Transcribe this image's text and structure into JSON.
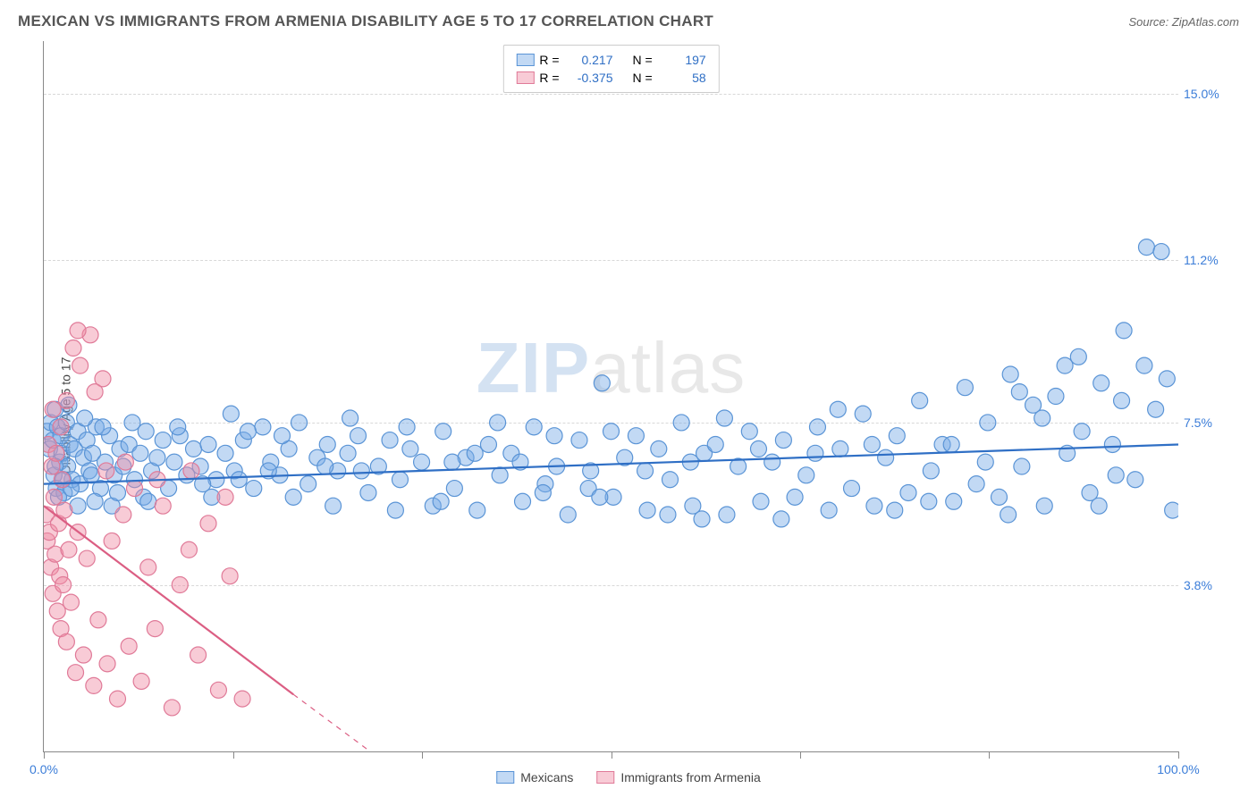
{
  "header": {
    "title": "MEXICAN VS IMMIGRANTS FROM ARMENIA DISABILITY AGE 5 TO 17 CORRELATION CHART",
    "source_prefix": "Source: ",
    "source_name": "ZipAtlas.com"
  },
  "watermark": {
    "zip": "ZIP",
    "rest": "atlas"
  },
  "chart": {
    "type": "scatter",
    "y_axis_label": "Disability Age 5 to 17",
    "background_color": "#ffffff",
    "grid_color": "#d8d8d8",
    "axis_color": "#888888",
    "marker_radius": 9,
    "marker_stroke_width": 1.2,
    "xlim": [
      0,
      100
    ],
    "ylim": [
      0,
      16.2
    ],
    "y_ticks": [
      {
        "value": 15.0,
        "label": "15.0%",
        "color": "#3b7dd8"
      },
      {
        "value": 11.2,
        "label": "11.2%",
        "color": "#3b7dd8"
      },
      {
        "value": 7.5,
        "label": "7.5%",
        "color": "#3b7dd8"
      },
      {
        "value": 3.8,
        "label": "3.8%",
        "color": "#3b7dd8"
      }
    ],
    "x_ticks": [
      {
        "value": 0.0,
        "label": "0.0%",
        "color": "#3b7dd8",
        "show_tick": true,
        "show_label": true
      },
      {
        "value": 16.67,
        "label": "",
        "color": "#3b7dd8",
        "show_tick": true,
        "show_label": false
      },
      {
        "value": 33.33,
        "label": "",
        "color": "#3b7dd8",
        "show_tick": true,
        "show_label": false
      },
      {
        "value": 50.0,
        "label": "",
        "color": "#3b7dd8",
        "show_tick": true,
        "show_label": false
      },
      {
        "value": 66.67,
        "label": "",
        "color": "#3b7dd8",
        "show_tick": true,
        "show_label": false
      },
      {
        "value": 83.33,
        "label": "",
        "color": "#3b7dd8",
        "show_tick": true,
        "show_label": false
      },
      {
        "value": 100.0,
        "label": "100.0%",
        "color": "#3b7dd8",
        "show_tick": true,
        "show_label": true
      }
    ],
    "series": [
      {
        "id": "mexicans",
        "label": "Mexicans",
        "fill_color": "rgba(120,170,230,0.45)",
        "stroke_color": "#5a94d6",
        "trend_color": "#2f6fc5",
        "trend_width": 2.2,
        "trend": {
          "x1": 0,
          "y1": 6.1,
          "x2": 100,
          "y2": 7.0
        },
        "r_label": "R =",
        "r_value": "0.217",
        "n_label": "N =",
        "n_value": "197",
        "stat_color": "#2f6fc5",
        "points": [
          [
            0.3,
            7.3
          ],
          [
            0.5,
            6.9
          ],
          [
            0.6,
            7.5
          ],
          [
            0.8,
            7.1
          ],
          [
            0.9,
            6.3
          ],
          [
            1.0,
            7.8
          ],
          [
            1.1,
            6.0
          ],
          [
            1.2,
            7.4
          ],
          [
            1.4,
            6.6
          ],
          [
            1.5,
            7.2
          ],
          [
            1.6,
            6.8
          ],
          [
            1.8,
            5.9
          ],
          [
            2.0,
            7.5
          ],
          [
            2.1,
            6.5
          ],
          [
            2.3,
            7.0
          ],
          [
            2.5,
            6.2
          ],
          [
            2.7,
            6.9
          ],
          [
            3.0,
            7.3
          ],
          [
            3.2,
            6.1
          ],
          [
            3.5,
            6.7
          ],
          [
            3.8,
            7.1
          ],
          [
            4.0,
            6.4
          ],
          [
            4.3,
            6.8
          ],
          [
            4.6,
            7.4
          ],
          [
            5.0,
            6.0
          ],
          [
            5.4,
            6.6
          ],
          [
            5.8,
            7.2
          ],
          [
            6.2,
            6.3
          ],
          [
            6.7,
            6.9
          ],
          [
            7.0,
            6.5
          ],
          [
            7.5,
            7.0
          ],
          [
            8.0,
            6.2
          ],
          [
            8.5,
            6.8
          ],
          [
            9.0,
            7.3
          ],
          [
            9.5,
            6.4
          ],
          [
            10,
            6.7
          ],
          [
            10.5,
            7.1
          ],
          [
            11,
            6.0
          ],
          [
            11.5,
            6.6
          ],
          [
            12,
            7.2
          ],
          [
            12.6,
            6.3
          ],
          [
            13.2,
            6.9
          ],
          [
            13.8,
            6.5
          ],
          [
            14.5,
            7.0
          ],
          [
            15.2,
            6.2
          ],
          [
            16,
            6.8
          ],
          [
            16.8,
            6.4
          ],
          [
            17.6,
            7.1
          ],
          [
            18.5,
            6.0
          ],
          [
            19.3,
            7.4
          ],
          [
            20,
            6.6
          ],
          [
            20.8,
            6.3
          ],
          [
            21.6,
            6.9
          ],
          [
            22.5,
            7.5
          ],
          [
            23.3,
            6.1
          ],
          [
            24.1,
            6.7
          ],
          [
            25,
            7.0
          ],
          [
            25.9,
            6.4
          ],
          [
            26.8,
            6.8
          ],
          [
            27.7,
            7.2
          ],
          [
            28.6,
            5.9
          ],
          [
            29.5,
            6.5
          ],
          [
            30.5,
            7.1
          ],
          [
            31.4,
            6.2
          ],
          [
            32.3,
            6.9
          ],
          [
            33.3,
            6.6
          ],
          [
            34.3,
            5.6
          ],
          [
            35.2,
            7.3
          ],
          [
            36.2,
            6.0
          ],
          [
            37.2,
            6.7
          ],
          [
            38.2,
            5.5
          ],
          [
            39.2,
            7.0
          ],
          [
            40.2,
            6.3
          ],
          [
            41.2,
            6.8
          ],
          [
            42.2,
            5.7
          ],
          [
            43.2,
            7.4
          ],
          [
            44.2,
            6.1
          ],
          [
            45.2,
            6.5
          ],
          [
            46.2,
            5.4
          ],
          [
            47.2,
            7.1
          ],
          [
            48.2,
            6.4
          ],
          [
            49.2,
            8.4
          ],
          [
            50.2,
            5.8
          ],
          [
            51.2,
            6.7
          ],
          [
            52.2,
            7.2
          ],
          [
            53.2,
            5.5
          ],
          [
            54.2,
            6.9
          ],
          [
            55.2,
            6.2
          ],
          [
            56.2,
            7.5
          ],
          [
            57.2,
            5.6
          ],
          [
            58.2,
            6.8
          ],
          [
            59.2,
            7.0
          ],
          [
            60.2,
            5.4
          ],
          [
            61.2,
            6.5
          ],
          [
            62.2,
            7.3
          ],
          [
            63.2,
            5.7
          ],
          [
            64.2,
            6.6
          ],
          [
            65.2,
            7.1
          ],
          [
            66.2,
            5.8
          ],
          [
            67.2,
            6.3
          ],
          [
            68.2,
            7.4
          ],
          [
            69.2,
            5.5
          ],
          [
            70.2,
            6.9
          ],
          [
            71.2,
            6.0
          ],
          [
            72.2,
            7.7
          ],
          [
            73.2,
            5.6
          ],
          [
            74.2,
            6.7
          ],
          [
            75.2,
            7.2
          ],
          [
            76.2,
            5.9
          ],
          [
            77.2,
            8.0
          ],
          [
            78.2,
            6.4
          ],
          [
            79.2,
            7.0
          ],
          [
            80.2,
            5.7
          ],
          [
            81.2,
            8.3
          ],
          [
            82.2,
            6.1
          ],
          [
            83.2,
            7.5
          ],
          [
            84.2,
            5.8
          ],
          [
            85.2,
            8.6
          ],
          [
            86.2,
            6.5
          ],
          [
            87.2,
            7.9
          ],
          [
            88.2,
            5.6
          ],
          [
            89.2,
            8.1
          ],
          [
            90.2,
            6.8
          ],
          [
            91.2,
            9.0
          ],
          [
            92.2,
            5.9
          ],
          [
            93.2,
            8.4
          ],
          [
            94.2,
            7.0
          ],
          [
            95.2,
            9.6
          ],
          [
            96.2,
            6.2
          ],
          [
            97.2,
            11.5
          ],
          [
            98.0,
            7.8
          ],
          [
            98.5,
            11.4
          ],
          [
            99.0,
            8.5
          ],
          [
            99.5,
            5.5
          ],
          [
            2.2,
            7.9
          ],
          [
            4.5,
            5.7
          ],
          [
            6.0,
            5.6
          ],
          [
            8.8,
            5.8
          ],
          [
            25.5,
            5.6
          ],
          [
            31.0,
            5.5
          ],
          [
            35.0,
            5.7
          ],
          [
            40.0,
            7.5
          ],
          [
            45.0,
            7.2
          ],
          [
            50.0,
            7.3
          ],
          [
            55.0,
            5.4
          ],
          [
            60.0,
            7.6
          ],
          [
            65.0,
            5.3
          ],
          [
            70.0,
            7.8
          ],
          [
            75.0,
            5.5
          ],
          [
            80.0,
            7.0
          ],
          [
            85.0,
            5.4
          ],
          [
            90.0,
            8.8
          ],
          [
            93.0,
            5.6
          ],
          [
            95.0,
            8.0
          ],
          [
            14.0,
            6.1
          ],
          [
            18.0,
            7.3
          ],
          [
            22.0,
            5.8
          ],
          [
            27.0,
            7.6
          ],
          [
            32.0,
            7.4
          ],
          [
            38.0,
            6.8
          ],
          [
            44.0,
            5.9
          ],
          [
            48.0,
            6.0
          ],
          [
            53.0,
            6.4
          ],
          [
            58.0,
            5.3
          ],
          [
            63.0,
            6.9
          ],
          [
            68.0,
            6.8
          ],
          [
            73.0,
            7.0
          ],
          [
            78.0,
            5.7
          ],
          [
            83.0,
            6.6
          ],
          [
            88.0,
            7.6
          ],
          [
            91.5,
            7.3
          ],
          [
            94.5,
            6.3
          ],
          [
            97.0,
            8.8
          ],
          [
            86.0,
            8.2
          ],
          [
            1.0,
            6.5
          ],
          [
            1.3,
            5.8
          ],
          [
            1.7,
            6.2
          ],
          [
            2.4,
            6.0
          ],
          [
            3.0,
            5.6
          ],
          [
            3.6,
            7.6
          ],
          [
            4.2,
            6.3
          ],
          [
            5.2,
            7.4
          ],
          [
            6.5,
            5.9
          ],
          [
            7.8,
            7.5
          ],
          [
            9.2,
            5.7
          ],
          [
            11.8,
            7.4
          ],
          [
            14.8,
            5.8
          ],
          [
            17.2,
            6.2
          ],
          [
            21.0,
            7.2
          ],
          [
            28.0,
            6.4
          ],
          [
            36.0,
            6.6
          ],
          [
            42.0,
            6.6
          ],
          [
            49.0,
            5.8
          ],
          [
            57.0,
            6.6
          ],
          [
            16.5,
            7.7
          ],
          [
            19.8,
            6.4
          ],
          [
            24.8,
            6.5
          ]
        ]
      },
      {
        "id": "armenia",
        "label": "Immigrants from Armenia",
        "fill_color": "rgba(240,140,165,0.45)",
        "stroke_color": "#e07a98",
        "trend_color": "#db5e83",
        "trend_width": 2.2,
        "trend": {
          "x1": 0,
          "y1": 5.6,
          "x2": 22,
          "y2": 1.3
        },
        "trend_ext": {
          "x1": 22,
          "y1": 1.3,
          "x2": 35,
          "y2": -1.2
        },
        "r_label": "R =",
        "r_value": "-0.375",
        "n_label": "N =",
        "n_value": "58",
        "stat_color": "#2f6fc5",
        "points": [
          [
            0.2,
            5.4
          ],
          [
            0.3,
            4.8
          ],
          [
            0.4,
            7.0
          ],
          [
            0.5,
            5.0
          ],
          [
            0.6,
            4.2
          ],
          [
            0.7,
            6.5
          ],
          [
            0.8,
            3.6
          ],
          [
            0.9,
            5.8
          ],
          [
            1.0,
            4.5
          ],
          [
            1.1,
            6.8
          ],
          [
            1.2,
            3.2
          ],
          [
            1.3,
            5.2
          ],
          [
            1.4,
            4.0
          ],
          [
            1.5,
            2.8
          ],
          [
            1.6,
            6.2
          ],
          [
            1.7,
            3.8
          ],
          [
            1.8,
            5.5
          ],
          [
            2.0,
            2.5
          ],
          [
            2.2,
            4.6
          ],
          [
            2.4,
            3.4
          ],
          [
            2.6,
            9.2
          ],
          [
            2.8,
            1.8
          ],
          [
            3.0,
            5.0
          ],
          [
            3.2,
            8.8
          ],
          [
            3.5,
            2.2
          ],
          [
            3.8,
            4.4
          ],
          [
            4.1,
            9.5
          ],
          [
            4.4,
            1.5
          ],
          [
            4.8,
            3.0
          ],
          [
            5.2,
            8.5
          ],
          [
            5.6,
            2.0
          ],
          [
            6.0,
            4.8
          ],
          [
            6.5,
            1.2
          ],
          [
            7.0,
            5.4
          ],
          [
            7.5,
            2.4
          ],
          [
            8.0,
            6.0
          ],
          [
            8.6,
            1.6
          ],
          [
            9.2,
            4.2
          ],
          [
            9.8,
            2.8
          ],
          [
            10.5,
            5.6
          ],
          [
            11.3,
            1.0
          ],
          [
            12.0,
            3.8
          ],
          [
            12.8,
            4.6
          ],
          [
            13.6,
            2.2
          ],
          [
            14.5,
            5.2
          ],
          [
            15.4,
            1.4
          ],
          [
            16.4,
            4.0
          ],
          [
            3.0,
            9.6
          ],
          [
            4.5,
            8.2
          ],
          [
            2.0,
            8.0
          ],
          [
            1.5,
            7.4
          ],
          [
            0.8,
            7.8
          ],
          [
            5.5,
            6.4
          ],
          [
            7.2,
            6.6
          ],
          [
            10.0,
            6.2
          ],
          [
            13.0,
            6.4
          ],
          [
            16.0,
            5.8
          ],
          [
            17.5,
            1.2
          ]
        ]
      }
    ],
    "legend_bottom": [
      {
        "series": "mexicans"
      },
      {
        "series": "armenia"
      }
    ]
  }
}
